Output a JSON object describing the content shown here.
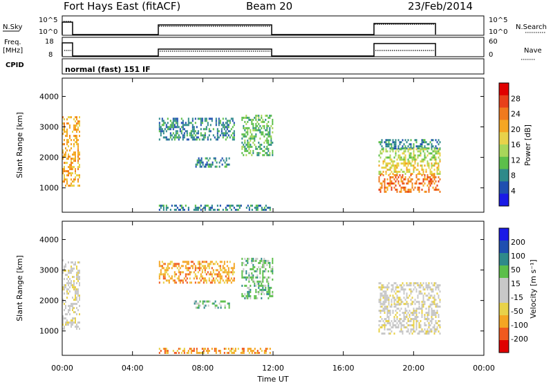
{
  "header": {
    "title": "Fort Hays East (fitACF)",
    "beam": "Beam 20",
    "date": "23/Feb/2014"
  },
  "nsky_panel": {
    "label": "N.Sky",
    "left_ticks": [
      "10^5",
      "10^0"
    ],
    "right_ticks": [
      "10^5",
      "10^0"
    ],
    "right_label": "N.Search"
  },
  "freq_panel": {
    "label_line1": "Freq.",
    "label_line2": "[MHz]",
    "left_ticks": [
      "18",
      "8"
    ],
    "right_ticks": [
      "60",
      "0"
    ],
    "right_label": "Nave"
  },
  "cpid_panel": {
    "label": "CPID",
    "text": "normal (fast) 151 IF"
  },
  "colors": {
    "power": [
      "#1a1ae6",
      "#1f4fb0",
      "#2f8a8a",
      "#5cbf4a",
      "#a8d65a",
      "#e8d24a",
      "#f5a623",
      "#f07a1e",
      "#e8401a",
      "#e00000"
    ],
    "velocity": [
      "#e00000",
      "#f05a1e",
      "#f5a623",
      "#e8d24a",
      "#c8c8c8",
      "#c8c8c8",
      "#5cbf4a",
      "#2f8a8a",
      "#1f4fb0",
      "#1a1ae6"
    ]
  },
  "chart_data": [
    {
      "type": "heatmap",
      "name": "power",
      "ylabel": "Slant Range [km]",
      "yticks": [
        "4000",
        "3000",
        "2000",
        "1000"
      ],
      "xlim": [
        0,
        24
      ],
      "ylim": [
        200,
        4600
      ],
      "colorbar": {
        "label": "Power [dB]",
        "ticks": [
          "28",
          "24",
          "20",
          "16",
          "12",
          "8",
          "4"
        ],
        "range": [
          0,
          32
        ]
      },
      "echo_regions": [
        {
          "t0": 0.0,
          "t1": 1.0,
          "r0": 1050,
          "r1": 3350,
          "value": 20
        },
        {
          "t0": 5.5,
          "t1": 9.8,
          "r0": 2600,
          "r1": 3300,
          "value": 8
        },
        {
          "t0": 7.5,
          "t1": 9.5,
          "r0": 1700,
          "r1": 2000,
          "value": 6
        },
        {
          "t0": 10.2,
          "t1": 12.0,
          "r0": 2100,
          "r1": 3400,
          "value": 10
        },
        {
          "t0": 18.0,
          "t1": 21.5,
          "r0": 2300,
          "r1": 2600,
          "value": 6
        },
        {
          "t0": 18.0,
          "t1": 21.5,
          "r0": 1900,
          "r1": 2300,
          "value": 14
        },
        {
          "t0": 18.0,
          "t1": 21.5,
          "r0": 1450,
          "r1": 1900,
          "value": 18
        },
        {
          "t0": 18.0,
          "t1": 21.5,
          "r0": 900,
          "r1": 1450,
          "value": 26
        },
        {
          "t0": 5.5,
          "t1": 12.0,
          "r0": 250,
          "r1": 450,
          "value": 8
        }
      ]
    },
    {
      "type": "heatmap",
      "name": "velocity",
      "ylabel": "Slant Range [km]",
      "xlabel": "Time UT",
      "xticks": [
        "00:00",
        "04:00",
        "08:00",
        "12:00",
        "16:00",
        "20:00",
        "00:00"
      ],
      "xtick_values": [
        0,
        4,
        8,
        12,
        16,
        20,
        24
      ],
      "yticks": [
        "4000",
        "3000",
        "2000",
        "1000"
      ],
      "xlim": [
        0,
        24
      ],
      "ylim": [
        200,
        4600
      ],
      "colorbar": {
        "label": "Velocity [m s⁻¹]",
        "ticks": [
          "200",
          "100",
          "50",
          "15",
          "-15",
          "-50",
          "-100",
          "-200"
        ]
      },
      "echo_regions": [
        {
          "t0": 0.0,
          "t1": 1.0,
          "r0": 1050,
          "r1": 3350,
          "value": 0
        },
        {
          "t0": 5.5,
          "t1": 9.8,
          "r0": 2600,
          "r1": 3300,
          "value": -30
        },
        {
          "t0": 7.5,
          "t1": 9.5,
          "r0": 1750,
          "r1": 2000,
          "value": 40
        },
        {
          "t0": 10.2,
          "t1": 12.0,
          "r0": 2100,
          "r1": 3400,
          "value": 30
        },
        {
          "t0": 18.0,
          "t1": 21.5,
          "r0": 1900,
          "r1": 2600,
          "value": -10
        },
        {
          "t0": 18.0,
          "t1": 21.5,
          "r0": 900,
          "r1": 1900,
          "value": 0
        },
        {
          "t0": 5.5,
          "t1": 12.0,
          "r0": 250,
          "r1": 450,
          "value": -40
        }
      ]
    }
  ]
}
